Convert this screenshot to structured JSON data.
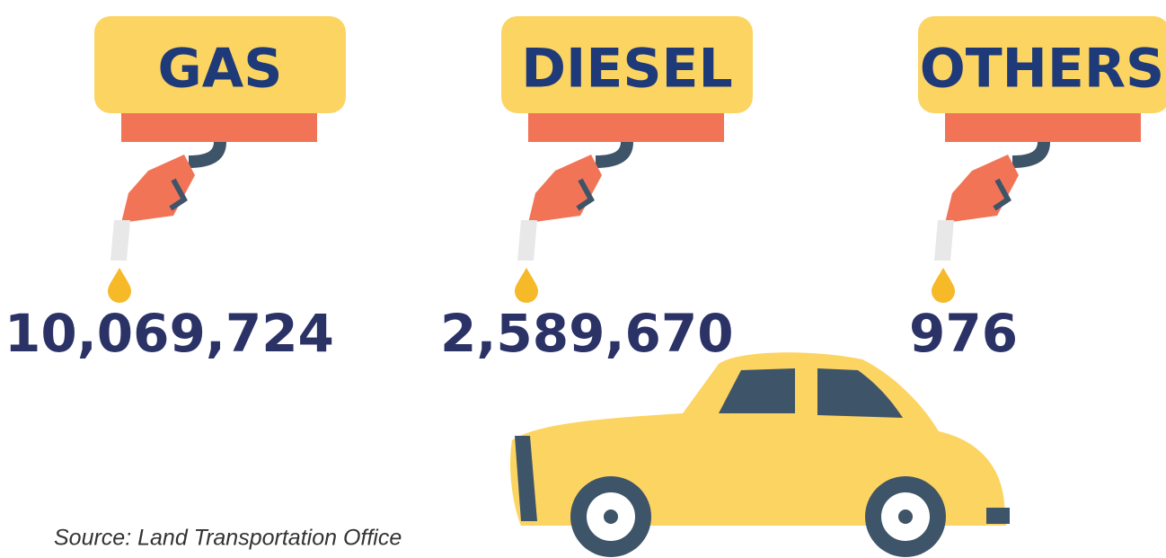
{
  "items": [
    {
      "label": "GAS",
      "value": "10,069,724"
    },
    {
      "label": "DIESEL",
      "value": "2,589,670"
    },
    {
      "label": "OTHERS",
      "value": "976"
    }
  ],
  "source": "Source: Land Transportation Office"
}
